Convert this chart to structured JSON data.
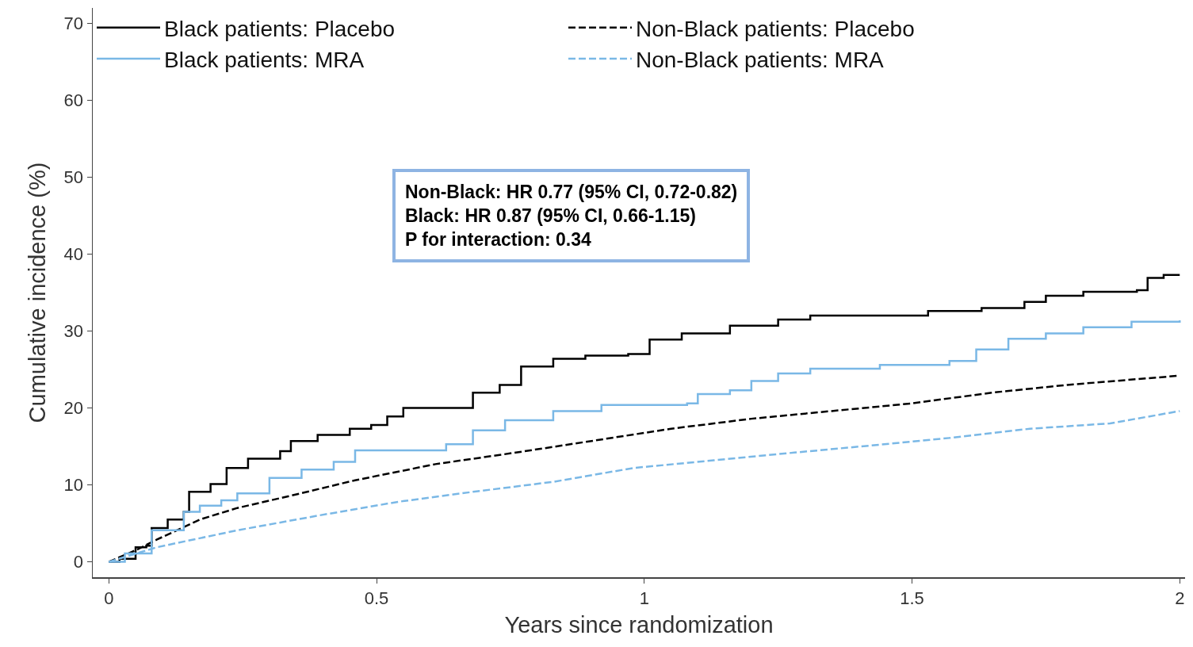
{
  "chart_data": {
    "type": "line",
    "xlabel": "Years since randomization",
    "ylabel": "Cumulative incidence (%)",
    "xlim": [
      -0.03,
      2.01
    ],
    "xticks": [
      0,
      0.5,
      1,
      1.5,
      2
    ],
    "ylim": [
      -2,
      72
    ],
    "yticks": [
      0,
      10,
      20,
      30,
      40,
      50,
      60,
      70
    ],
    "grid": false,
    "legend": "top left",
    "marker": "none",
    "annotations": [
      "Non-Black: HR 0.77 (95% CI, 0.72-0.82)",
      "Black: HR 0.87 (95% CI, 0.66-1.15)",
      "P for interaction: 0.34"
    ],
    "series": [
      {
        "name": "Black patients: Placebo",
        "type": "step",
        "line_style": "solid",
        "color": "#000000",
        "x": [
          0,
          0.02,
          0.05,
          0.07,
          0.08,
          0.11,
          0.14,
          0.15,
          0.19,
          0.22,
          0.26,
          0.32,
          0.34,
          0.39,
          0.45,
          0.49,
          0.52,
          0.55,
          0.64,
          0.68,
          0.73,
          0.77,
          0.83,
          0.89,
          0.97,
          1.01,
          1.07,
          1.16,
          1.25,
          1.31,
          1.51,
          1.53,
          1.63,
          1.71,
          1.75,
          1.82,
          1.92,
          1.94,
          1.97,
          2.0
        ],
        "values": [
          0,
          0.4,
          1.9,
          2.1,
          4.4,
          5.5,
          6.5,
          9.1,
          10.1,
          12.2,
          13.4,
          14.4,
          15.7,
          16.5,
          17.3,
          17.8,
          18.9,
          20.0,
          20.0,
          22.0,
          23.0,
          25.4,
          26.4,
          26.8,
          27.0,
          28.9,
          29.7,
          30.7,
          31.5,
          32.0,
          32.0,
          32.6,
          33.0,
          33.8,
          34.6,
          35.1,
          35.3,
          36.9,
          37.3,
          37.3
        ]
      },
      {
        "name": "Non-Black patients: Placebo",
        "line_style": "dashed",
        "color": "#000000",
        "x": [
          0,
          0.05,
          0.09,
          0.17,
          0.24,
          0.34,
          0.46,
          0.61,
          0.76,
          0.91,
          1.05,
          1.2,
          1.35,
          1.5,
          1.65,
          1.79,
          2.0
        ],
        "values": [
          0,
          1.5,
          2.9,
          5.5,
          7.0,
          8.6,
          10.6,
          12.7,
          14.2,
          15.8,
          17.3,
          18.6,
          19.6,
          20.6,
          22.0,
          23.0,
          24.2
        ]
      },
      {
        "name": "Black patients: MRA",
        "type": "step",
        "line_style": "solid",
        "color": "#7ab8e6",
        "x": [
          0,
          0.03,
          0.08,
          0.14,
          0.17,
          0.21,
          0.24,
          0.3,
          0.36,
          0.42,
          0.46,
          0.63,
          0.68,
          0.74,
          0.83,
          0.92,
          1.08,
          1.1,
          1.16,
          1.2,
          1.25,
          1.31,
          1.44,
          1.57,
          1.62,
          1.68,
          1.75,
          1.82,
          1.91,
          2.0
        ],
        "values": [
          0,
          1.1,
          4.1,
          6.5,
          7.3,
          8.0,
          8.9,
          10.9,
          12.0,
          13.0,
          14.5,
          15.3,
          17.1,
          18.4,
          19.6,
          20.4,
          20.6,
          21.8,
          22.3,
          23.5,
          24.5,
          25.1,
          25.6,
          26.1,
          27.6,
          29.0,
          29.7,
          30.5,
          31.2,
          31.4
        ]
      },
      {
        "name": "Non-Black patients: MRA",
        "line_style": "dashed",
        "color": "#7ab8e6",
        "x": [
          0,
          0.09,
          0.24,
          0.39,
          0.54,
          0.68,
          0.83,
          0.98,
          1.13,
          1.28,
          1.42,
          1.57,
          1.72,
          1.87,
          2.0
        ],
        "values": [
          0,
          1.9,
          4.1,
          6.0,
          7.8,
          9.1,
          10.4,
          12.2,
          13.2,
          14.2,
          15.1,
          16.1,
          17.3,
          18.0,
          19.6
        ]
      }
    ]
  }
}
